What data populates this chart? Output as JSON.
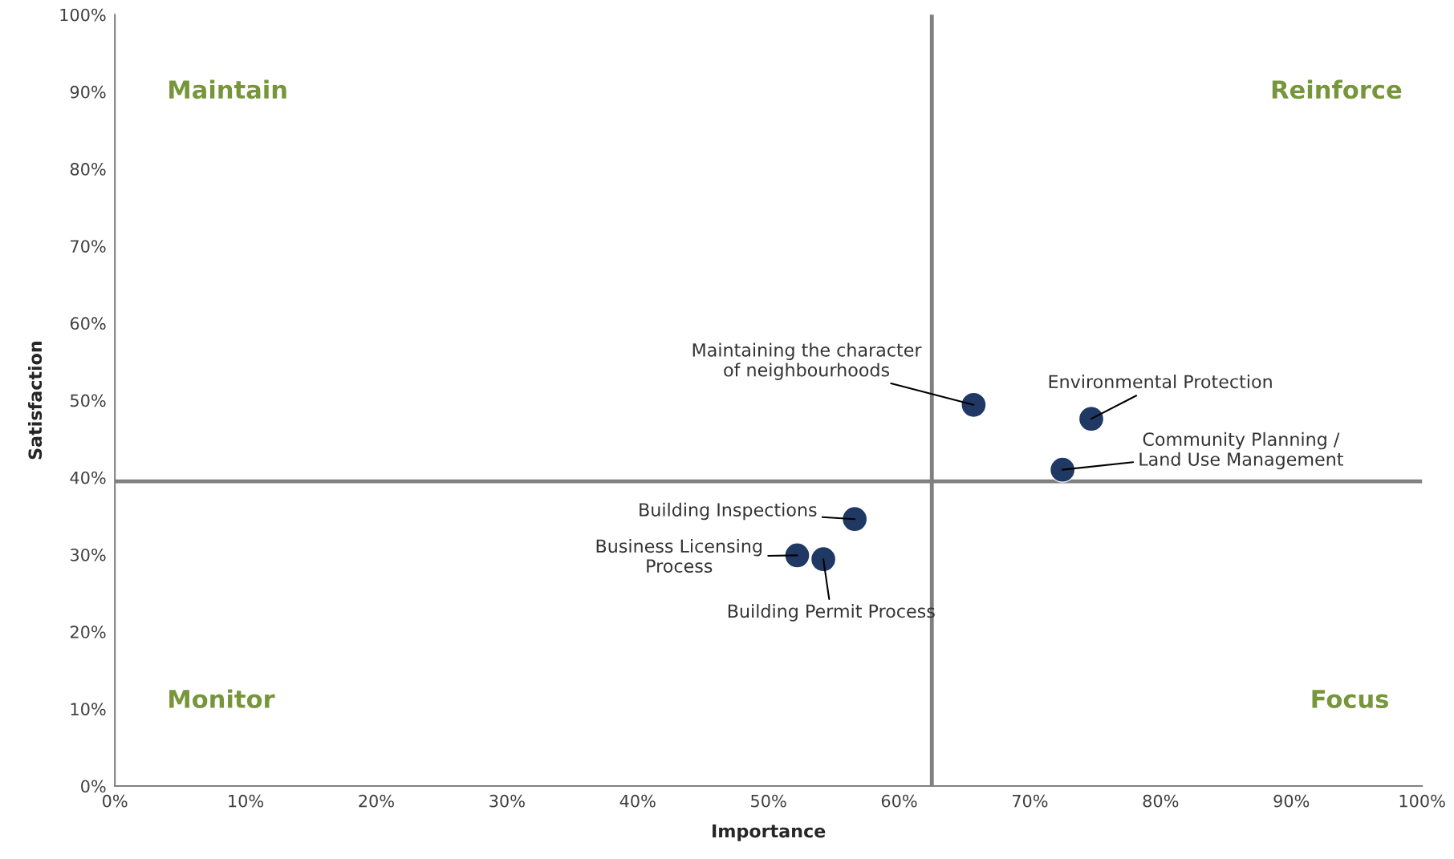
{
  "chart_data": {
    "type": "scatter",
    "xlabel": "Importance",
    "ylabel": "Satisfaction",
    "x": [
      65.7,
      74.7,
      72.5,
      56.6,
      52.2,
      54.2
    ],
    "series": [
      {
        "color": "#1f3864",
        "values": [
          49.4,
          47.6,
          41.0,
          34.6,
          29.9,
          29.4
        ]
      }
    ],
    "marker": "circle",
    "legend": false,
    "grid": false,
    "xlim": [
      0,
      100
    ],
    "ylim": [
      0,
      100
    ],
    "xticks": [
      {
        "value": 0,
        "label": "0%"
      },
      {
        "value": 10,
        "label": "10%"
      },
      {
        "value": 20,
        "label": "20%"
      },
      {
        "value": 30,
        "label": "30%"
      },
      {
        "value": 40,
        "label": "40%"
      },
      {
        "value": 50,
        "label": "50%"
      },
      {
        "value": 60,
        "label": "60%"
      },
      {
        "value": 70,
        "label": "70%"
      },
      {
        "value": 80,
        "label": "80%"
      },
      {
        "value": 90,
        "label": "90%"
      },
      {
        "value": 100,
        "label": "100%"
      }
    ],
    "yticks": [
      {
        "value": 0,
        "label": "0%"
      },
      {
        "value": 10,
        "label": "10%"
      },
      {
        "value": 20,
        "label": "20%"
      },
      {
        "value": 30,
        "label": "30%"
      },
      {
        "value": 40,
        "label": "40%"
      },
      {
        "value": 50,
        "label": "50%"
      },
      {
        "value": 60,
        "label": "60%"
      },
      {
        "value": 70,
        "label": "70%"
      },
      {
        "value": 80,
        "label": "80%"
      },
      {
        "value": 90,
        "label": "90%"
      },
      {
        "value": 100,
        "label": "100%"
      }
    ],
    "ref_lines": [
      {
        "axis": "x",
        "value": 62.5,
        "color": "#808080"
      },
      {
        "axis": "y",
        "value": 39.5,
        "color": "#808080"
      }
    ],
    "annotations": [
      {
        "text": "Maintaining the character\nof neighbourhoods",
        "x": 65.7,
        "y": 49.4
      },
      {
        "text": "Environmental Protection",
        "x": 74.7,
        "y": 47.6
      },
      {
        "text": "Community Planning /\nLand Use Management",
        "x": 72.5,
        "y": 41.0
      },
      {
        "text": "Building Inspections",
        "x": 56.6,
        "y": 34.6
      },
      {
        "text": "Business Licensing\nProcess",
        "x": 52.2,
        "y": 29.9
      },
      {
        "text": "Building Permit Process",
        "x": 54.2,
        "y": 29.4
      },
      "Maintain",
      "Reinforce",
      "Monitor",
      "Focus"
    ]
  }
}
